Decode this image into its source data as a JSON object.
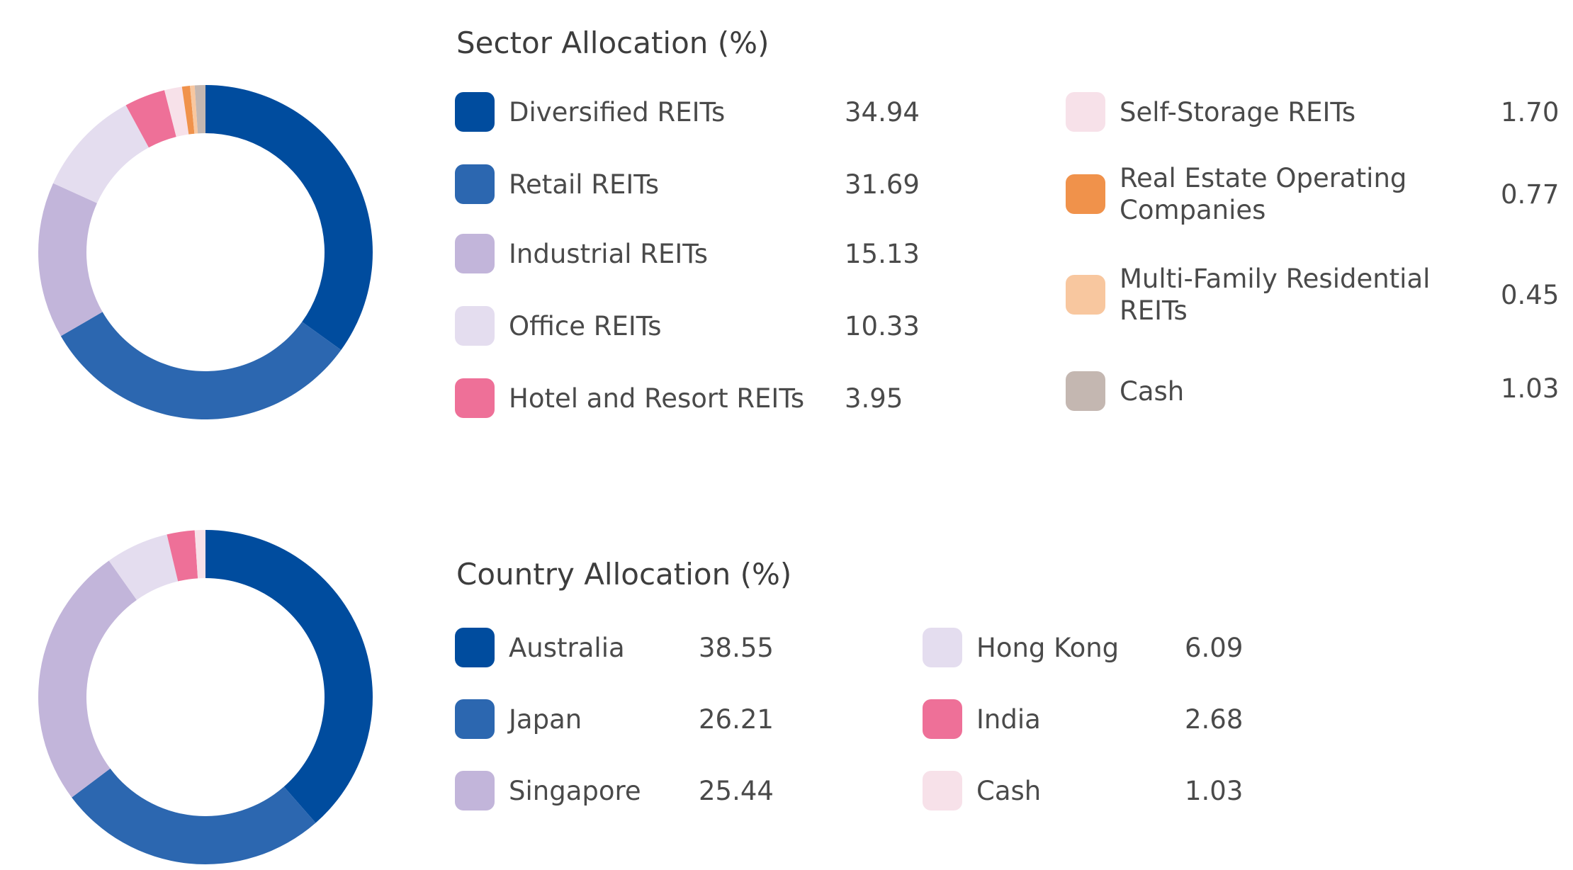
{
  "chart_data": [
    {
      "type": "pie",
      "title": "Sector Allocation (%)",
      "categories": [
        "Diversified REITs",
        "Retail REITs",
        "Industrial REITs",
        "Office REITs",
        "Hotel and Resort REITs",
        "Self-Storage REITs",
        "Real Estate Operating Companies",
        "Multi-Family Residential REITs",
        "Cash"
      ],
      "values": [
        34.94,
        31.69,
        15.13,
        10.33,
        3.95,
        1.7,
        0.77,
        0.45,
        1.03
      ],
      "value_labels": [
        "34.94",
        "31.69",
        "15.13",
        "10.33",
        "3.95",
        "1.70",
        "0.77",
        "0.45",
        "1.03"
      ],
      "label_lines": [
        [
          "Diversified REITs"
        ],
        [
          "Retail REITs"
        ],
        [
          "Industrial REITs"
        ],
        [
          "Office REITs"
        ],
        [
          "Hotel and Resort REITs"
        ],
        [
          "Self-Storage REITs"
        ],
        [
          "Real Estate Operating",
          "Companies"
        ],
        [
          "Multi-Family Residential",
          "REITs"
        ],
        [
          "Cash"
        ]
      ],
      "colors": [
        "#004c9e",
        "#2c67b0",
        "#c2b5da",
        "#e4ddef",
        "#ee7098",
        "#f7e1e9",
        "#f0924b",
        "#f8c79f",
        "#c4b7b1"
      ],
      "legend": "right"
    },
    {
      "type": "pie",
      "title": "Country Allocation (%)",
      "categories": [
        "Australia",
        "Japan",
        "Singapore",
        "Hong Kong",
        "India",
        "Cash"
      ],
      "values": [
        38.55,
        26.21,
        25.44,
        6.09,
        2.68,
        1.03
      ],
      "value_labels": [
        "38.55",
        "26.21",
        "25.44",
        "6.09",
        "2.68",
        "1.03"
      ],
      "label_lines": [
        [
          "Australia"
        ],
        [
          "Japan"
        ],
        [
          "Singapore"
        ],
        [
          "Hong Kong"
        ],
        [
          "India"
        ],
        [
          "Cash"
        ]
      ],
      "colors": [
        "#004c9e",
        "#2c67b0",
        "#c2b5da",
        "#e4ddef",
        "#ee7098",
        "#f7e1e9"
      ],
      "legend": "right"
    }
  ]
}
